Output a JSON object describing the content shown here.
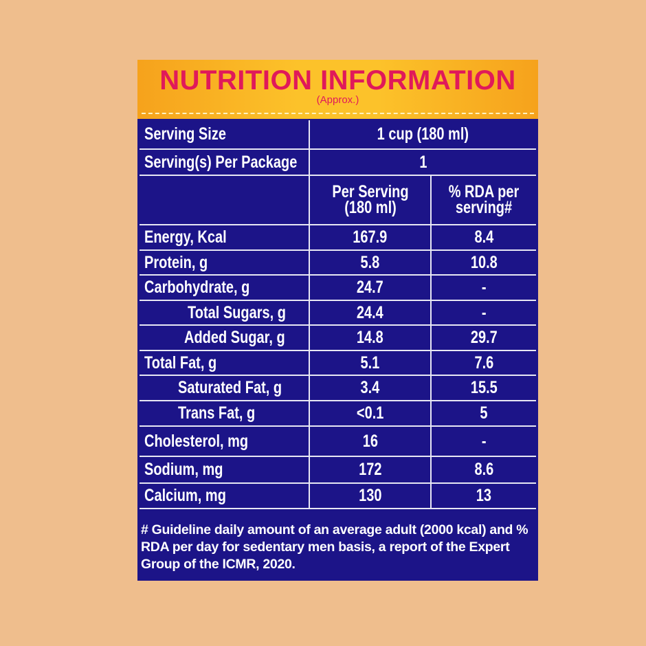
{
  "header": {
    "title": "NUTRITION INFORMATION",
    "subtitle": "(Approx.)"
  },
  "serving": [
    {
      "label": "Serving Size",
      "value": "1 cup (180 ml)"
    },
    {
      "label": "Serving(s) Per Package",
      "value": "1"
    }
  ],
  "table": {
    "columns": [
      "Per Serving (180 ml)",
      "% RDA per serving#"
    ],
    "rows": [
      [
        "Energy, Kcal",
        "167.9",
        "8.4"
      ],
      [
        "Protein, g",
        "5.8",
        "10.8"
      ],
      [
        "Carbohydrate, g",
        "24.7",
        "-"
      ],
      [
        "Total Sugars, g",
        "24.4",
        "-"
      ],
      [
        "Added Sugar, g",
        "14.8",
        "29.7"
      ],
      [
        "Total Fat, g",
        "5.1",
        "7.6"
      ],
      [
        "Saturated Fat, g",
        "3.4",
        "15.5"
      ],
      [
        "Trans Fat, g",
        "<0.1",
        "5"
      ],
      [
        "Cholesterol, mg",
        "16",
        "-"
      ],
      [
        "Sodium, mg",
        "172",
        "8.6"
      ],
      [
        "Calcium, mg",
        "130",
        "13"
      ]
    ]
  },
  "footnote": "# Guideline daily amount of an average adult (2000 kcal) and % RDA per day for sedentary men basis, a report of the Expert Group of the ICMR, 2020."
}
